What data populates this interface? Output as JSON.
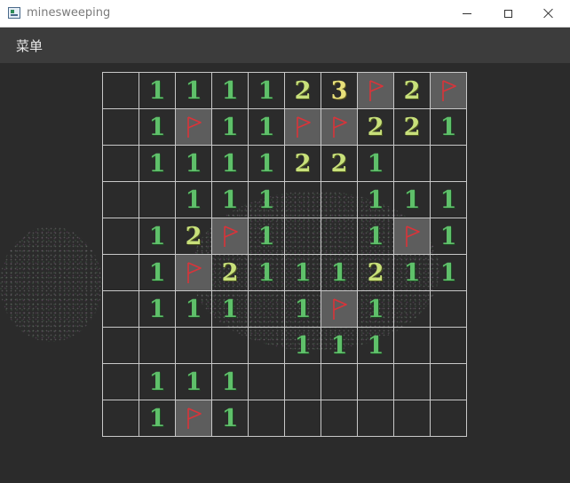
{
  "window": {
    "title": "minesweeping"
  },
  "menu": {
    "items": [
      "菜单"
    ]
  },
  "colors": {
    "background": "#2b2b2b",
    "menubar": "#3c3c3c",
    "grid": "#c8c8c8",
    "flag_cell": "#5d5d5d",
    "flag": "#d9343a",
    "number_1": "#5fc06a",
    "number_2": "#c8e07a",
    "number_3": "#e8e07a"
  },
  "board": {
    "rows": 10,
    "cols": 10,
    "cells": [
      [
        "",
        "1",
        "1",
        "1",
        "1",
        "2",
        "3",
        "F",
        "2",
        "F"
      ],
      [
        "",
        "1",
        "F",
        "1",
        "1",
        "F",
        "F",
        "2",
        "2",
        "1"
      ],
      [
        "",
        "1",
        "1",
        "1",
        "1",
        "2",
        "2",
        "1",
        "",
        ""
      ],
      [
        "",
        "",
        "1",
        "1",
        "1",
        "",
        "",
        "1",
        "1",
        "1"
      ],
      [
        "",
        "1",
        "2",
        "F",
        "1",
        "",
        "",
        "1",
        "F",
        "1"
      ],
      [
        "",
        "1",
        "F",
        "2",
        "1",
        "1",
        "1",
        "2",
        "1",
        "1"
      ],
      [
        "",
        "1",
        "1",
        "1",
        "",
        "1",
        "F",
        "1",
        "",
        ""
      ],
      [
        "",
        "",
        "",
        "",
        "",
        "1",
        "1",
        "1",
        "",
        ""
      ],
      [
        "",
        "1",
        "1",
        "1",
        "",
        "",
        "",
        "",
        "",
        ""
      ],
      [
        "",
        "1",
        "F",
        "1",
        "",
        "",
        "",
        "",
        "",
        ""
      ]
    ]
  }
}
